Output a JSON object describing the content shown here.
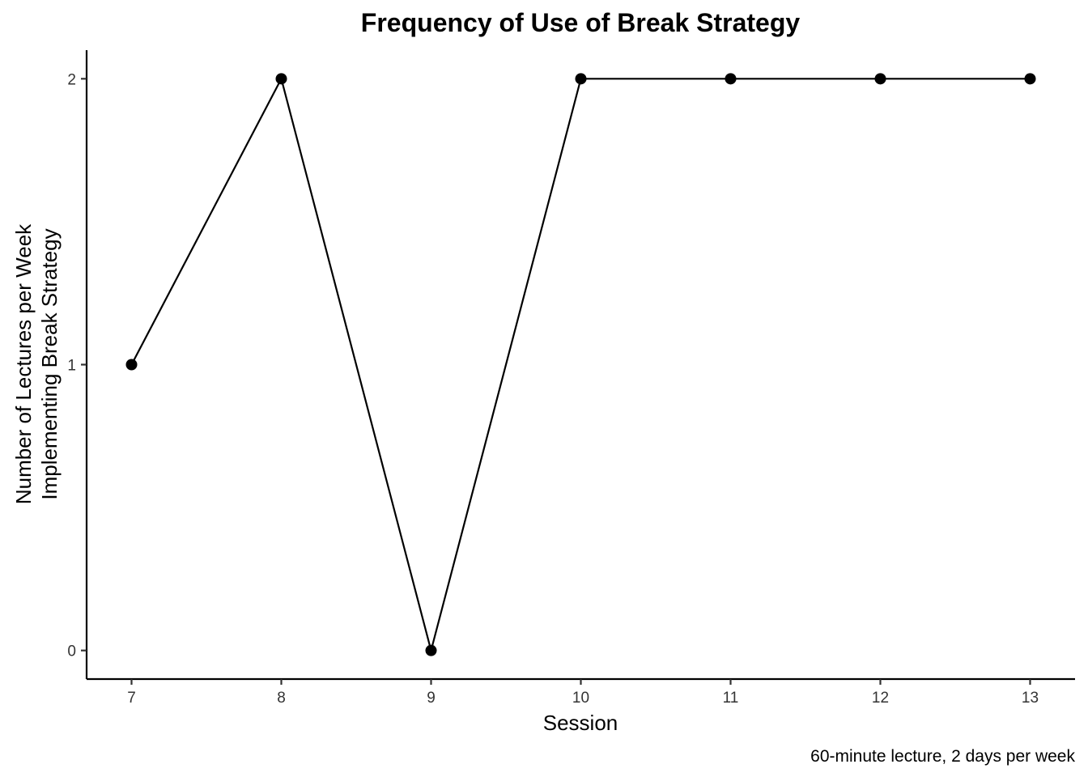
{
  "chart_data": {
    "type": "line",
    "title": "Frequency of Use of Break Strategy",
    "xlabel": "Session",
    "ylabel_lines": [
      "Number of Lectures per Week",
      "Implementing Break Strategy"
    ],
    "caption": "60-minute lecture, 2 days per week",
    "x": [
      7,
      8,
      9,
      10,
      11,
      12,
      13
    ],
    "y": [
      1,
      2,
      0,
      2,
      2,
      2,
      2
    ],
    "x_ticks": [
      7,
      8,
      9,
      10,
      11,
      12,
      13
    ],
    "y_ticks": [
      0,
      1,
      2
    ],
    "xlim": [
      6.7,
      13.3
    ],
    "ylim": [
      -0.1,
      2.1
    ],
    "grid": false,
    "line_color": "#000000",
    "point_color": "#000000"
  }
}
